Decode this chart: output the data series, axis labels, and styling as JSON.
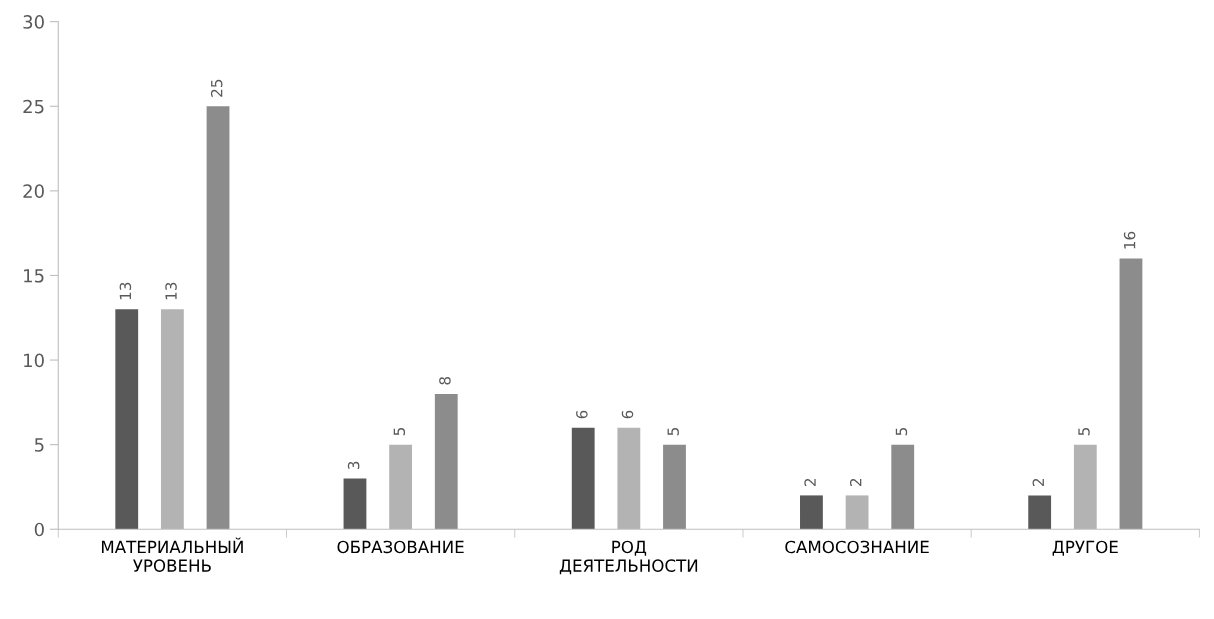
{
  "chart_data": {
    "type": "bar",
    "categories": [
      "МАТЕРИАЛЬНЫЙ\nУРОВЕНЬ",
      "ОБРАЗОВАНИЕ",
      "РОД\nДЕЯТЕЛЬНОСТИ",
      "САМОСОЗНАНИЕ",
      "ДРУГОЕ"
    ],
    "series": [
      {
        "color": "#595959",
        "values": [
          13,
          3,
          6,
          2,
          2
        ]
      },
      {
        "color": "#b3b3b3",
        "values": [
          13,
          5,
          6,
          2,
          5
        ]
      },
      {
        "color": "#8c8c8c",
        "values": [
          25,
          8,
          5,
          5,
          16
        ]
      }
    ],
    "ylim": [
      0,
      30
    ],
    "yticks": [
      0,
      5,
      10,
      15,
      20,
      25,
      30
    ],
    "grid": false,
    "data_labels": true
  }
}
